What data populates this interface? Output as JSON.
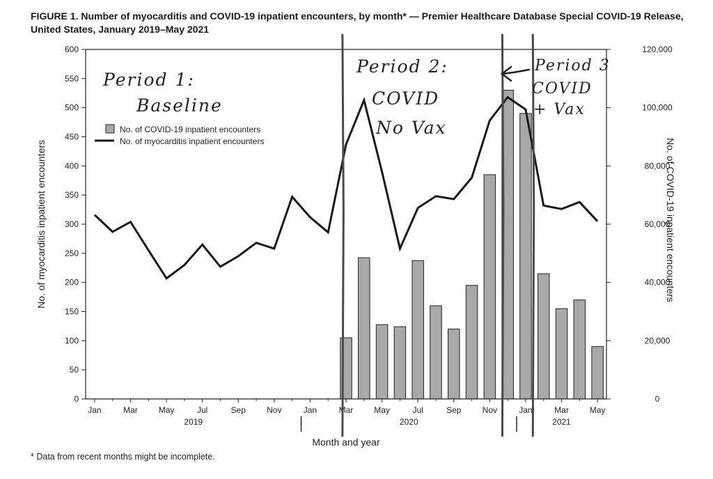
{
  "title": "FIGURE 1. Number of myocarditis and COVID-19 inpatient encounters, by month* — Premier Healthcare Database Special COVID-19 Release, United States, January 2019–May 2021",
  "footnote": "* Data from recent months might be incomplete.",
  "handwritten": {
    "period1": [
      "Period 1:",
      "Baseline"
    ],
    "period2": [
      "Period 2:",
      "COVID",
      "No Vax"
    ],
    "period3": [
      "Period 3",
      "COVID",
      "+ Vax"
    ]
  },
  "chart_data": {
    "type": "bar+line",
    "xlabel": "Month and year",
    "ylabel_left": "No. of myocarditis inpatient encounters",
    "ylabel_right": "No. of COVID-19 inpatient encounters",
    "ylim_left": [
      0,
      600
    ],
    "yticks_left": [
      0,
      50,
      100,
      150,
      200,
      250,
      300,
      350,
      400,
      450,
      500,
      550,
      600
    ],
    "ylim_right": [
      0,
      120000
    ],
    "yticks_right": [
      "0",
      "20,000",
      "40,000",
      "60,000",
      "80,000",
      "100,000",
      "120,000"
    ],
    "yticks_right_values": [
      0,
      20000,
      40000,
      60000,
      80000,
      100000,
      120000
    ],
    "months": [
      "Jan 2019",
      "Feb 2019",
      "Mar 2019",
      "Apr 2019",
      "May 2019",
      "Jun 2019",
      "Jul 2019",
      "Aug 2019",
      "Sep 2019",
      "Oct 2019",
      "Nov 2019",
      "Dec 2019",
      "Jan 2020",
      "Feb 2020",
      "Mar 2020",
      "Apr 2020",
      "May 2020",
      "Jun 2020",
      "Jul 2020",
      "Aug 2020",
      "Sep 2020",
      "Oct 2020",
      "Nov 2020",
      "Dec 2020",
      "Jan 2021",
      "Feb 2021",
      "Mar 2021",
      "Apr 2021",
      "May 2021"
    ],
    "x_tick_labels": [
      {
        "index": 0,
        "label": "Jan"
      },
      {
        "index": 2,
        "label": "Mar"
      },
      {
        "index": 4,
        "label": "May"
      },
      {
        "index": 6,
        "label": "Jul"
      },
      {
        "index": 8,
        "label": "Sep"
      },
      {
        "index": 10,
        "label": "Nov"
      },
      {
        "index": 12,
        "label": "Jan"
      },
      {
        "index": 14,
        "label": "Mar"
      },
      {
        "index": 16,
        "label": "May"
      },
      {
        "index": 18,
        "label": "Jul"
      },
      {
        "index": 20,
        "label": "Sep"
      },
      {
        "index": 22,
        "label": "Nov"
      },
      {
        "index": 24,
        "label": "Jan"
      },
      {
        "index": 26,
        "label": "Mar"
      },
      {
        "index": 28,
        "label": "May"
      }
    ],
    "year_labels": [
      {
        "label": "2019",
        "center_index": 5.5
      },
      {
        "label": "2020",
        "center_index": 17.5
      },
      {
        "label": "2021",
        "center_index": 26
      }
    ],
    "year_separators": [
      11.5,
      23.5
    ],
    "series": [
      {
        "name": "No. of COVID-19 inpatient encounters",
        "type": "bar",
        "axis": "right",
        "color": "#a8a8a8",
        "values": [
          null,
          null,
          null,
          null,
          null,
          null,
          null,
          null,
          null,
          null,
          null,
          null,
          null,
          null,
          21000,
          48500,
          25500,
          24800,
          47500,
          32000,
          24000,
          39000,
          77000,
          106000,
          98000,
          43000,
          31000,
          34000,
          18000
        ]
      },
      {
        "name": "No. of myocarditis inpatient encounters",
        "type": "line",
        "axis": "left",
        "color": "#1a1a1a",
        "values": [
          316,
          287,
          304,
          255,
          207,
          230,
          265,
          227,
          245,
          268,
          258,
          347,
          312,
          286,
          437,
          513,
          390,
          258,
          328,
          348,
          343,
          380,
          478,
          518,
          497,
          332,
          326,
          338,
          305
        ]
      }
    ],
    "legend_position": "top-left",
    "period_markers": [
      13.8,
      22.7,
      24.4
    ]
  }
}
